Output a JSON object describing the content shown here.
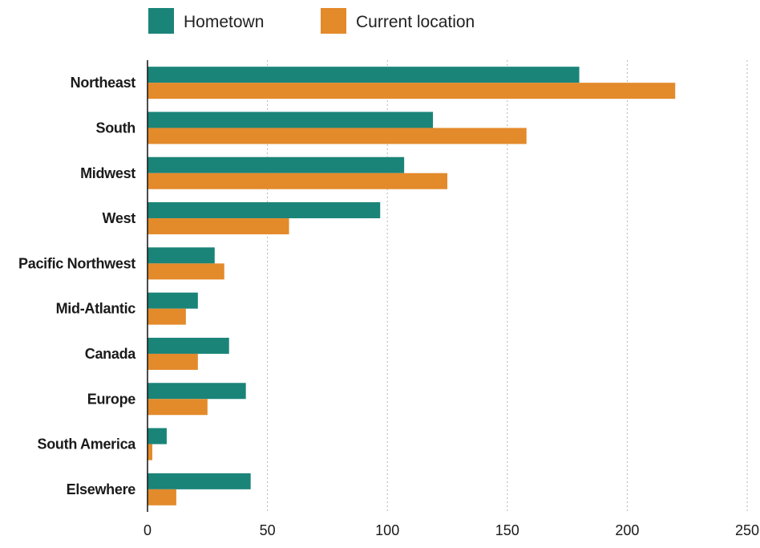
{
  "chart_data": {
    "type": "bar",
    "orientation": "horizontal",
    "title": "",
    "xlabel": "",
    "ylabel": "",
    "categories": [
      "Northeast",
      "South",
      "Midwest",
      "West",
      "Pacific Northwest",
      "Mid-Atlantic",
      "Canada",
      "Europe",
      "South America",
      "Elsewhere"
    ],
    "series": [
      {
        "name": "Hometown",
        "color": "#1a8478",
        "values": [
          180,
          119,
          107,
          97,
          28,
          21,
          34,
          41,
          8,
          43
        ]
      },
      {
        "name": "Current location",
        "color": "#e38a2b",
        "values": [
          220,
          158,
          125,
          59,
          32,
          16,
          21,
          25,
          2,
          12
        ]
      }
    ],
    "xlim": [
      0,
      250
    ],
    "xticks": [
      0,
      50,
      100,
      150,
      200,
      250
    ],
    "grid": "vertical-dotted",
    "legend": "top-left"
  }
}
